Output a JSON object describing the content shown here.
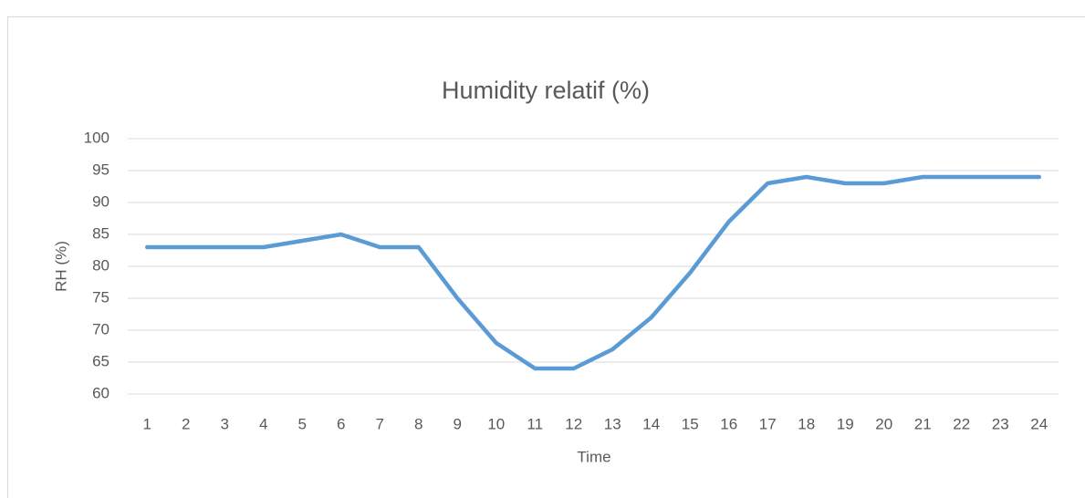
{
  "chart_data": {
    "type": "line",
    "title": "Humidity relatif (%)",
    "x_label": "Time",
    "y_label": "RH (%)",
    "categories": [
      "1",
      "2",
      "3",
      "4",
      "5",
      "6",
      "7",
      "8",
      "9",
      "10",
      "11",
      "12",
      "13",
      "14",
      "15",
      "16",
      "17",
      "18",
      "19",
      "20",
      "21",
      "22",
      "23",
      "24"
    ],
    "series": [
      {
        "name": "RH (%)",
        "color": "#5b9bd5",
        "values": [
          83,
          83,
          83,
          83,
          84,
          85,
          83,
          83,
          75,
          68,
          64,
          64,
          67,
          72,
          79,
          87,
          93,
          94,
          93,
          93,
          94,
          94,
          94,
          94
        ]
      }
    ],
    "ylim": [
      60,
      100
    ],
    "yticks": [
      60,
      65,
      70,
      75,
      80,
      85,
      90,
      95,
      100
    ],
    "grid": true
  }
}
